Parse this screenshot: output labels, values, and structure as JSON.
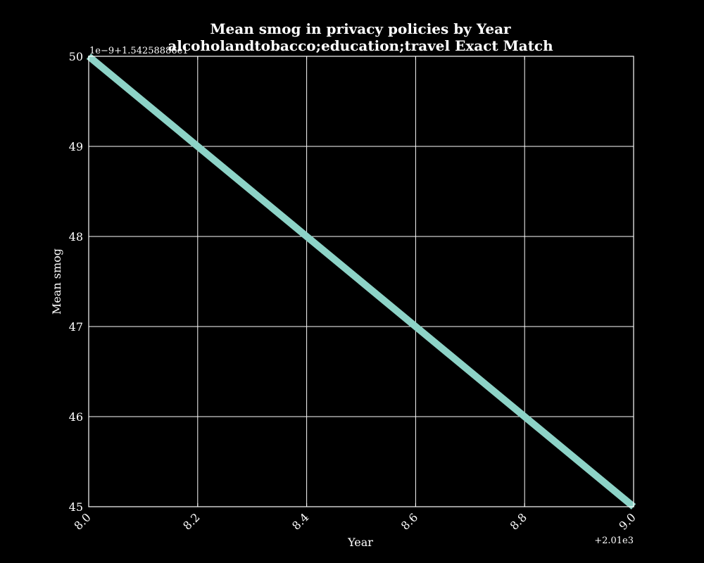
{
  "chart_data": {
    "type": "line",
    "title_line1": "Mean smog in privacy policies by Year",
    "title_line2": "alcoholandtobacco;education;travel Exact Match",
    "xlabel": "Year",
    "ylabel": "Mean smog",
    "x_tick_labels": [
      "8.0",
      "8.2",
      "8.4",
      "8.6",
      "8.8",
      "9.0"
    ],
    "y_tick_labels": [
      "45",
      "46",
      "47",
      "48",
      "49",
      "50"
    ],
    "x_offset_label": "+2.01e3",
    "y_offset_label": "1e−9+1.54258886e1",
    "x_ticks": [
      2018.0,
      2018.2,
      2018.4,
      2018.6,
      2018.8,
      2019.0
    ],
    "y_ticks": [
      15.425888645,
      15.425888646,
      15.425888647,
      15.425888648,
      15.425888649,
      15.42588865
    ],
    "xlim": [
      2018.0,
      2019.0
    ],
    "ylim": [
      15.425888645,
      15.42588865
    ],
    "grid": true,
    "series": [
      {
        "x": [
          2018,
          2019
        ],
        "y": [
          15.42588865,
          15.425888645
        ],
        "color": "#8dd3c7"
      }
    ],
    "colors": {
      "background": "#000000",
      "foreground": "#ffffff",
      "grid": "#ffffff"
    }
  }
}
